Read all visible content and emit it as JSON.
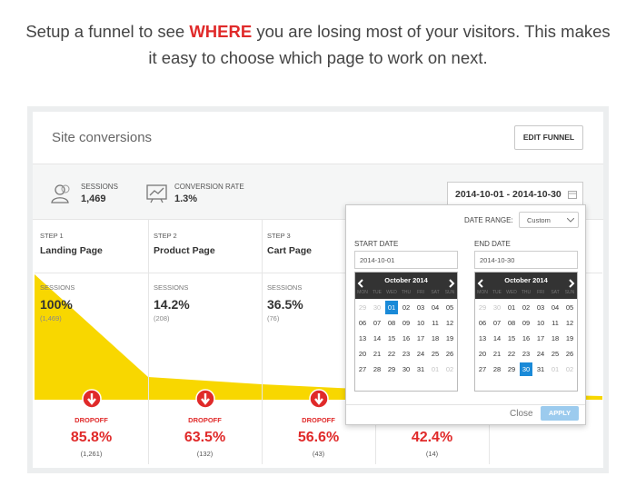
{
  "intro": {
    "before": "Setup a funnel to see ",
    "highlight": "WHERE",
    "after": " you are losing most of your visitors. This makes it easy to choose which page to work on next."
  },
  "panel": {
    "title": "Site conversions",
    "edit_button": "EDIT FUNNEL"
  },
  "stats": [
    {
      "label": "SESSIONS",
      "value": "1,469"
    },
    {
      "label": "CONVERSION RATE",
      "value": "1.3%"
    }
  ],
  "date_field": "2014-10-01 - 2014-10-30",
  "steps": [
    {
      "step": "STEP 1",
      "name": "Landing Page",
      "sessions_label": "SESSIONS",
      "percent": "100%",
      "count": "(1,469)"
    },
    {
      "step": "STEP 2",
      "name": "Product Page",
      "sessions_label": "SESSIONS",
      "percent": "14.2%",
      "count": "(208)"
    },
    {
      "step": "STEP 3",
      "name": "Cart Page",
      "sessions_label": "SESSIONS",
      "percent": "36.5%",
      "count": "(76)"
    }
  ],
  "dropoffs": [
    {
      "label": "DROPOFF",
      "percent": "85.8%",
      "count": "(1,261)"
    },
    {
      "label": "DROPOFF",
      "percent": "63.5%",
      "count": "(132)"
    },
    {
      "label": "DROPOFF",
      "percent": "56.6%",
      "count": "(43)"
    },
    {
      "percent": "42.4%",
      "count": "(14)"
    }
  ],
  "date_picker": {
    "range_label": "DATE RANGE:",
    "range_value": "Custom",
    "calendars": [
      {
        "label": "START DATE",
        "input": "2014-10-01",
        "month": "October 2014",
        "weekdays": [
          "MON",
          "TUE",
          "WED",
          "THU",
          "FRI",
          "SAT",
          "SUN"
        ],
        "weeks": [
          [
            "29",
            "30",
            "01",
            "02",
            "03",
            "04",
            "05"
          ],
          [
            "06",
            "07",
            "08",
            "09",
            "10",
            "11",
            "12"
          ],
          [
            "13",
            "14",
            "15",
            "16",
            "17",
            "18",
            "19"
          ],
          [
            "20",
            "21",
            "22",
            "23",
            "24",
            "25",
            "26"
          ],
          [
            "27",
            "28",
            "29",
            "30",
            "31",
            "01",
            "02"
          ]
        ]
      },
      {
        "label": "END DATE",
        "input": "2014-10-30",
        "month": "October 2014",
        "weekdays": [
          "MON",
          "TUE",
          "WED",
          "THU",
          "FRI",
          "SAT",
          "SUN"
        ],
        "weeks": [
          [
            "29",
            "30",
            "01",
            "02",
            "03",
            "04",
            "05"
          ],
          [
            "06",
            "07",
            "08",
            "09",
            "10",
            "11",
            "12"
          ],
          [
            "13",
            "14",
            "15",
            "16",
            "17",
            "18",
            "19"
          ],
          [
            "20",
            "21",
            "22",
            "23",
            "24",
            "25",
            "26"
          ],
          [
            "27",
            "28",
            "29",
            "30",
            "31",
            "01",
            "02"
          ]
        ]
      }
    ],
    "close": "Close",
    "apply": "APPLY"
  }
}
